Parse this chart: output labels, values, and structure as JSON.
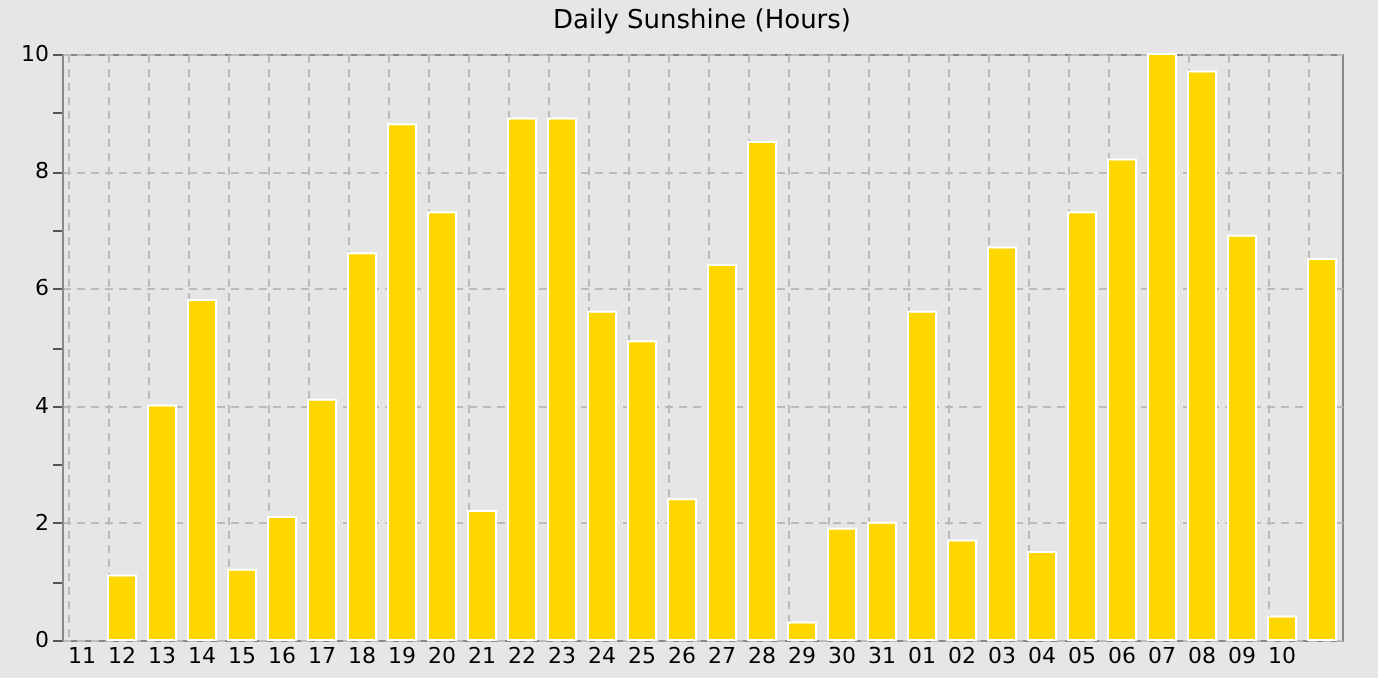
{
  "chart_data": {
    "type": "bar",
    "title": "Daily Sunshine (Hours)",
    "categories": [
      "11",
      "12",
      "13",
      "14",
      "15",
      "16",
      "17",
      "18",
      "19",
      "20",
      "21",
      "22",
      "23",
      "24",
      "25",
      "26",
      "27",
      "28",
      "29",
      "30",
      "31",
      "01",
      "02",
      "03",
      "04",
      "05",
      "06",
      "07",
      "08",
      "09",
      "10",
      null
    ],
    "values": [
      null,
      1.1,
      4.0,
      5.8,
      1.2,
      2.1,
      4.1,
      6.6,
      8.8,
      7.3,
      2.2,
      8.9,
      8.9,
      5.6,
      5.1,
      2.4,
      6.4,
      8.5,
      0.3,
      1.9,
      2.0,
      5.6,
      1.7,
      6.7,
      1.5,
      7.3,
      8.2,
      10.0,
      9.7,
      6.9,
      0.4,
      6.5
    ],
    "color": "#ffd700",
    "ylim": [
      0,
      10
    ],
    "yticks": [
      0,
      {
        "value": 1,
        "label": null
      },
      2,
      {
        "value": 3,
        "label": null
      },
      4,
      {
        "value": 5,
        "label": null
      },
      6,
      {
        "value": 7,
        "label": null
      },
      8,
      {
        "value": 9,
        "label": null
      },
      10
    ],
    "grid": true
  }
}
